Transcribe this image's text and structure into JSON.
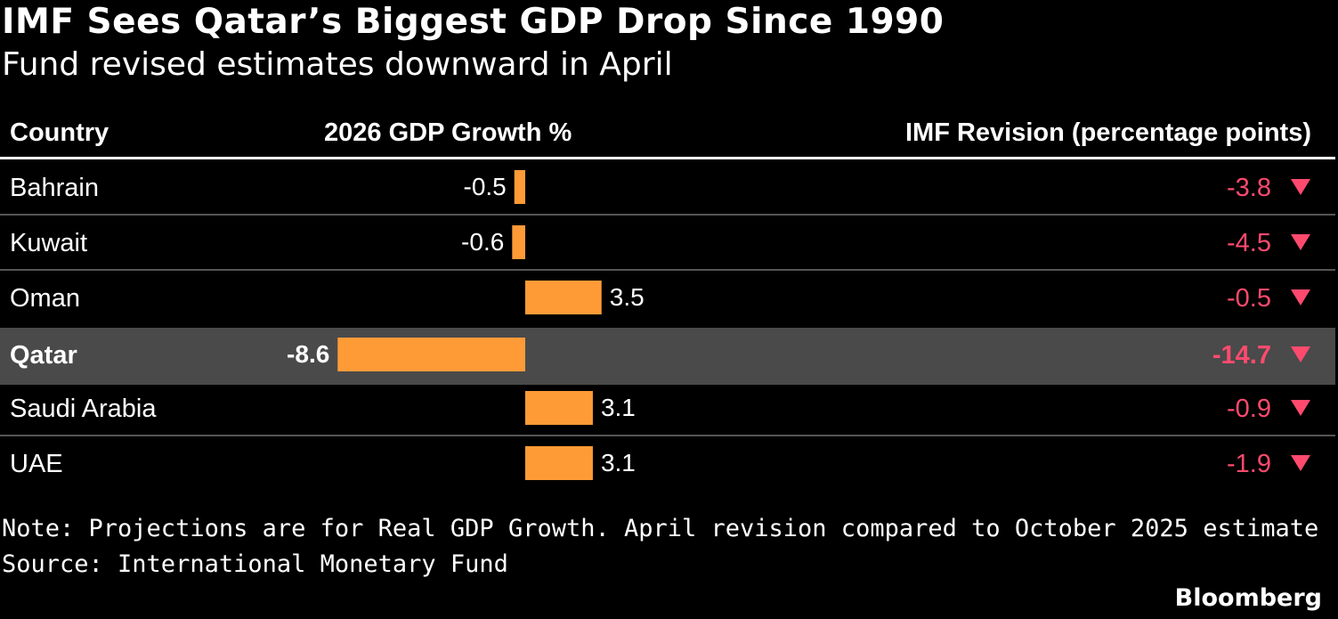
{
  "title": "IMF Sees Qatar’s Biggest GDP Drop Since 1990",
  "subtitle": "Fund revised estimates downward in April",
  "chart_data": {
    "type": "table",
    "columns": [
      "Country",
      "2026 GDP Growth %",
      "IMF Revision (percentage points)"
    ],
    "rows": [
      {
        "country": "Bahrain",
        "growth": -0.5,
        "growth_label": "-0.5",
        "revision": -3.8,
        "revision_label": "-3.8",
        "highlight": false
      },
      {
        "country": "Kuwait",
        "growth": -0.6,
        "growth_label": "-0.6",
        "revision": -4.5,
        "revision_label": "-4.5",
        "highlight": false
      },
      {
        "country": "Oman",
        "growth": 3.5,
        "growth_label": "3.5",
        "revision": -0.5,
        "revision_label": "-0.5",
        "highlight": false
      },
      {
        "country": "Qatar",
        "growth": -8.6,
        "growth_label": "-8.6",
        "revision": -14.7,
        "revision_label": "-14.7",
        "highlight": true
      },
      {
        "country": "Saudi Arabia",
        "growth": 3.1,
        "growth_label": "3.1",
        "revision": -0.9,
        "revision_label": "-0.9",
        "highlight": false
      },
      {
        "country": "UAE",
        "growth": 3.1,
        "growth_label": "3.1",
        "revision": -1.9,
        "revision_label": "-1.9",
        "highlight": false
      }
    ],
    "revision_direction": "down",
    "revision_icon": "triangle-down-icon"
  },
  "colors": {
    "background": "#000000",
    "bar": "#ff9b37",
    "revision_negative": "#ff4a6e",
    "highlight_row": "#4a4a4a",
    "row_divider": "#555555",
    "text": "#ffffff"
  },
  "note": "Note: Projections are for Real GDP Growth. April revision compared to October 2025 estimate",
  "source": "Source: International Monetary Fund",
  "brand": "Bloomberg"
}
